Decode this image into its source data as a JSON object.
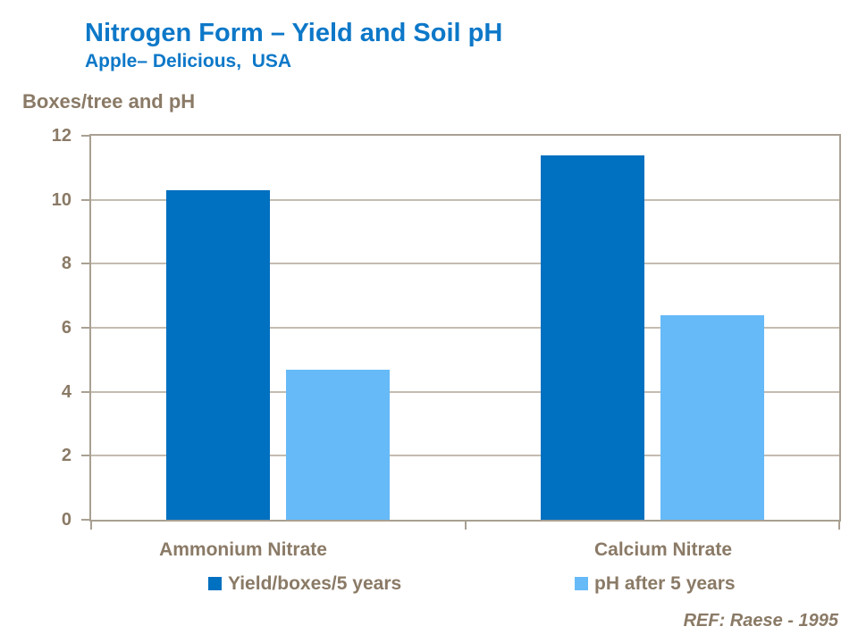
{
  "header": {
    "title": "Nitrogen Form – Yield and Soil pH",
    "subtitle": "Apple– Delicious,  USA"
  },
  "axis_title": "Boxes/tree and pH",
  "footer": {
    "ref": "REF: Raese - 1995"
  },
  "colors": {
    "title_blue": "#0d78c8",
    "yield_bar": "#0070c0",
    "ph_bar": "#66baf8",
    "text_brown": "#8a7a66",
    "gridline": "#c4bcb0",
    "axis": "#a9a093",
    "background": "#ffffff"
  },
  "chart_data": {
    "type": "bar",
    "title": "Nitrogen Form – Yield and Soil pH",
    "subtitle": "Apple– Delicious, USA",
    "ylabel": "Boxes/tree and pH",
    "xlabel": "",
    "categories": [
      "Ammonium Nitrate",
      "Calcium Nitrate"
    ],
    "series": [
      {
        "name": "Yield/boxes/5 years",
        "color": "#0070c0",
        "values": [
          10.3,
          11.4
        ]
      },
      {
        "name": "pH after 5 years",
        "color": "#66baf8",
        "values": [
          4.7,
          6.4
        ]
      }
    ],
    "ylim": [
      0,
      12
    ],
    "yticks": [
      0,
      2,
      4,
      6,
      8,
      10,
      12
    ],
    "grid": true,
    "legend_position": "bottom",
    "annotation": "REF: Raese - 1995"
  }
}
